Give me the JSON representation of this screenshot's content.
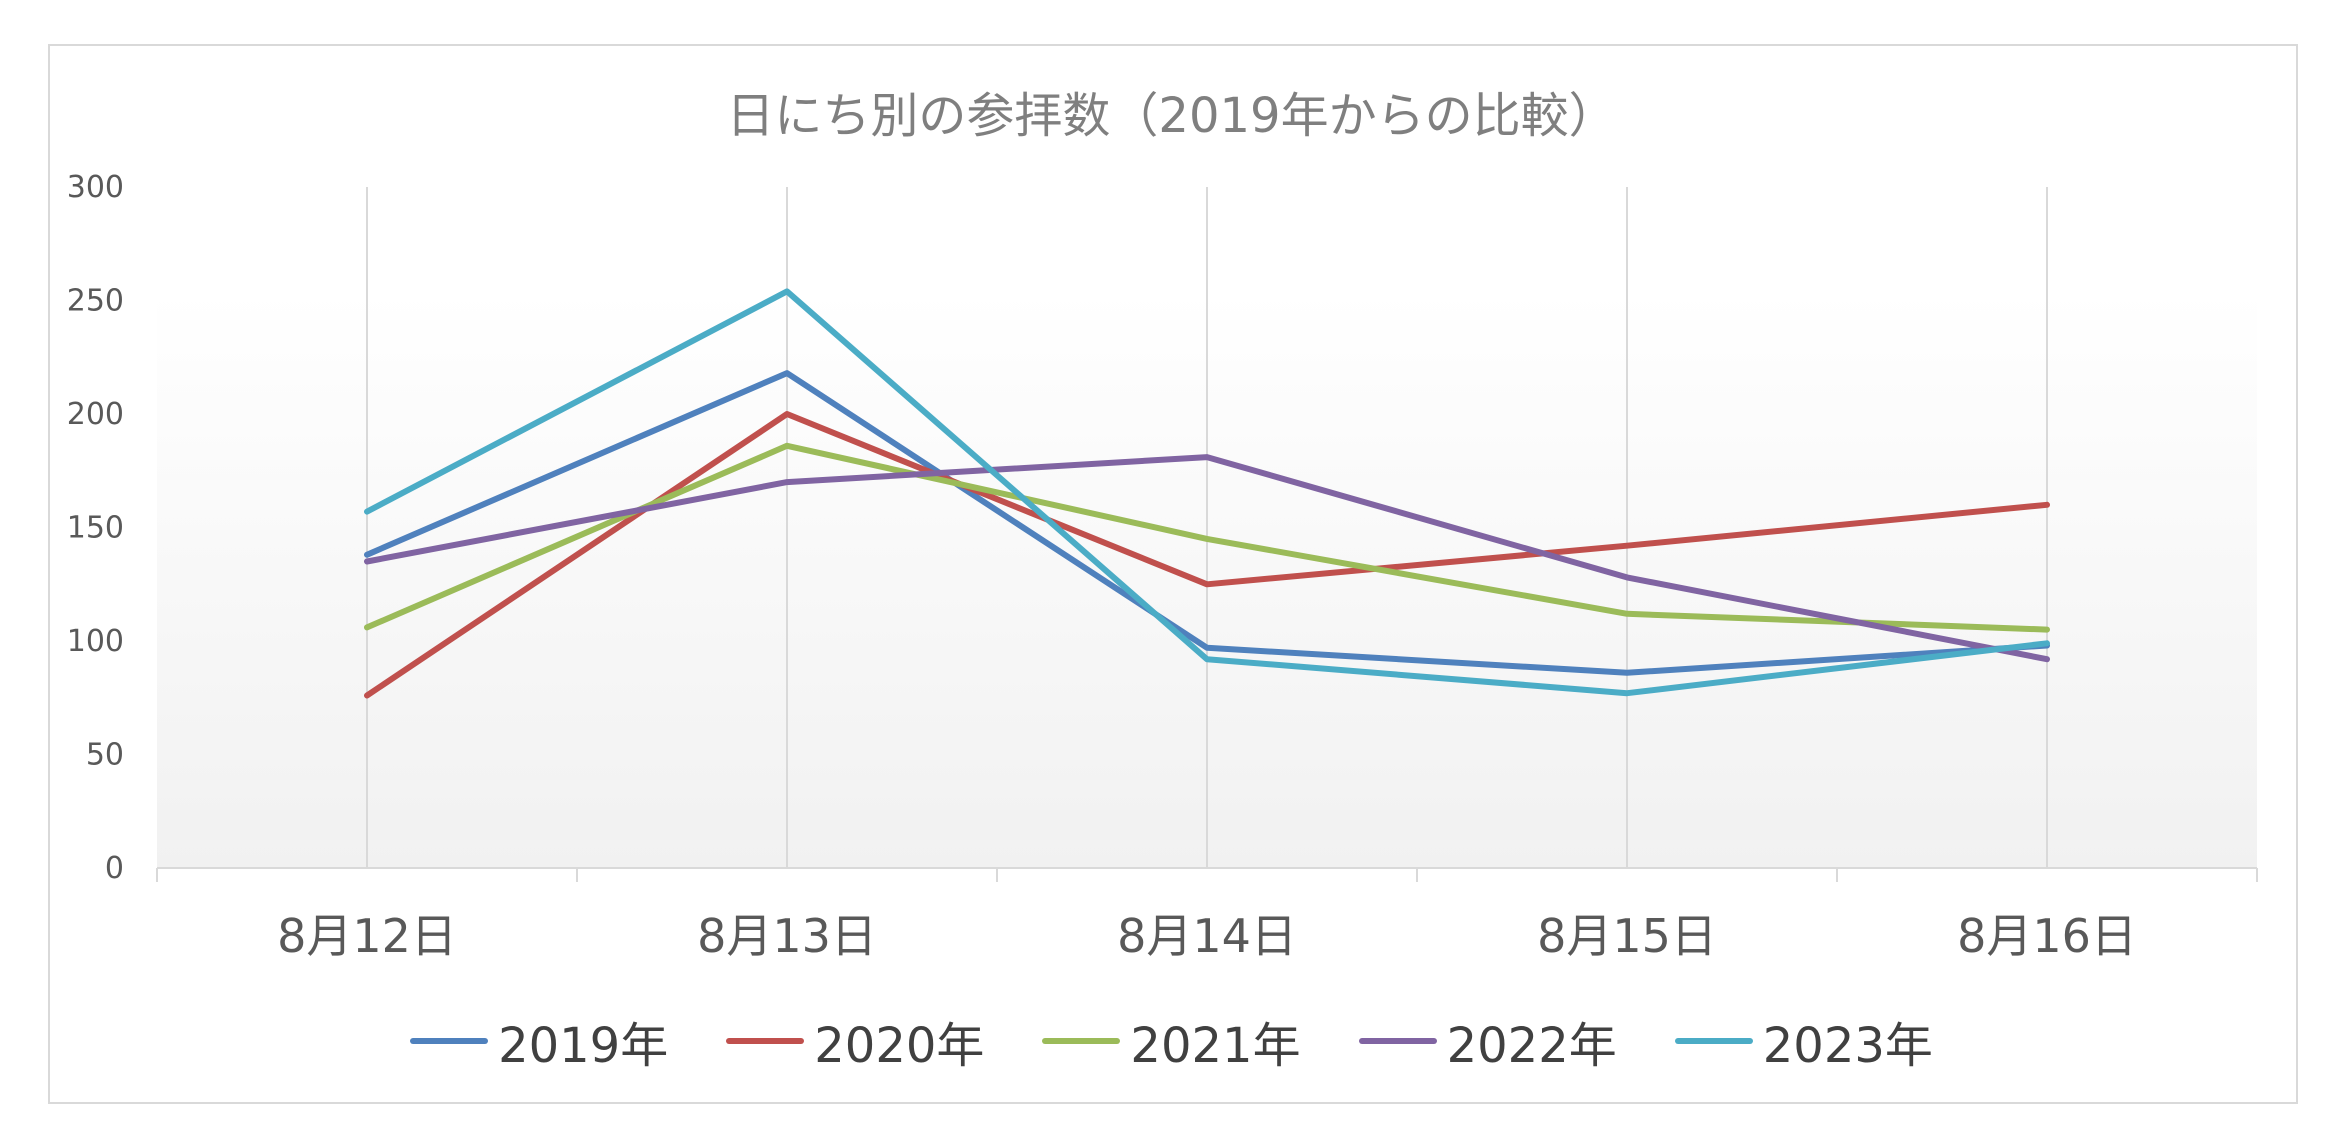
{
  "chart_data": {
    "type": "line",
    "title": "日にち別の参拝数（2019年からの比較）",
    "xlabel": "",
    "ylabel": "",
    "categories": [
      "8月12日",
      "8月13日",
      "8月14日",
      "8月15日",
      "8月16日"
    ],
    "ylim": [
      0,
      300
    ],
    "yticks": [
      0,
      50,
      100,
      150,
      200,
      250,
      300
    ],
    "grid": "vertical",
    "legend": "bottom",
    "series": [
      {
        "name": "2019年",
        "color": "#4f81bd",
        "values": [
          138,
          218,
          97,
          86,
          98
        ]
      },
      {
        "name": "2020年",
        "color": "#c0504d",
        "values": [
          76,
          200,
          125,
          142,
          160
        ]
      },
      {
        "name": "2021年",
        "color": "#9bbb59",
        "values": [
          106,
          186,
          145,
          112,
          105
        ]
      },
      {
        "name": "2022年",
        "color": "#8064a2",
        "values": [
          135,
          170,
          181,
          128,
          92
        ]
      },
      {
        "name": "2023年",
        "color": "#4bacc6",
        "values": [
          157,
          254,
          92,
          77,
          99
        ]
      }
    ]
  }
}
